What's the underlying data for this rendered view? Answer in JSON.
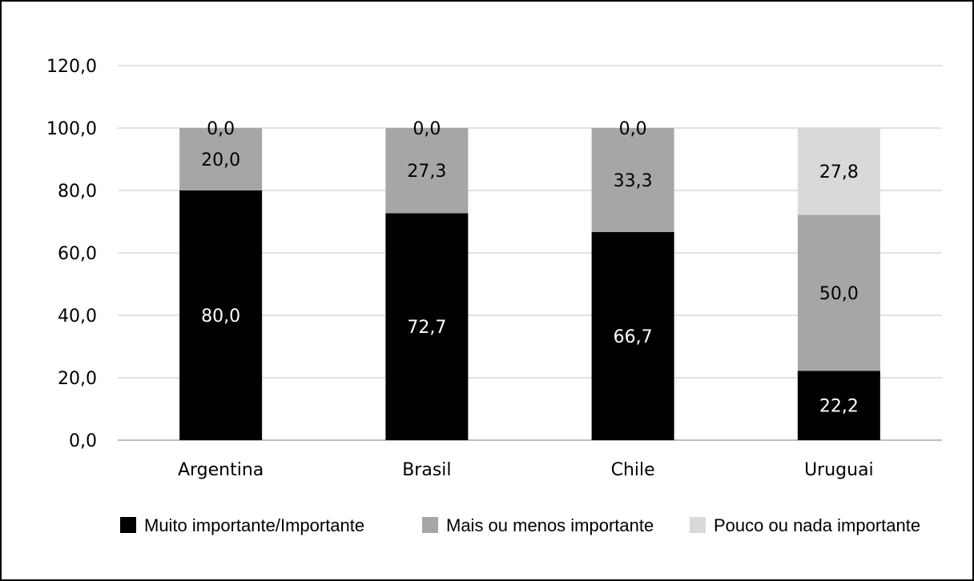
{
  "chart_data": {
    "type": "bar",
    "stacked": true,
    "title": "",
    "xlabel": "",
    "ylabel": "",
    "ylim": [
      0,
      120
    ],
    "yticks": [
      "0,0",
      "20,0",
      "40,0",
      "60,0",
      "80,0",
      "100,0",
      "120,0"
    ],
    "grid": true,
    "legend_position": "bottom",
    "categories": [
      "Argentina",
      "Brasil",
      "Chile",
      "Uruguai"
    ],
    "series": [
      {
        "name": "Muito importante/Importante",
        "color": "#000000",
        "label_color": "#ffffff",
        "values": [
          80.0,
          72.7,
          66.7,
          22.2
        ],
        "labels": [
          "80,0",
          "72,7",
          "66,7",
          "22,2"
        ]
      },
      {
        "name": "Mais ou menos importante",
        "color": "#a6a6a6",
        "label_color": "#000000",
        "values": [
          20.0,
          27.3,
          33.3,
          50.0
        ],
        "labels": [
          "20,0",
          "27,3",
          "33,3",
          "50,0"
        ]
      },
      {
        "name": "Pouco ou nada importante",
        "color": "#d9d9d9",
        "label_color": "#000000",
        "values": [
          0.0,
          0.0,
          0.0,
          27.8
        ],
        "labels": [
          "0,0",
          "0,0",
          "0,0",
          "27,8"
        ]
      }
    ]
  }
}
